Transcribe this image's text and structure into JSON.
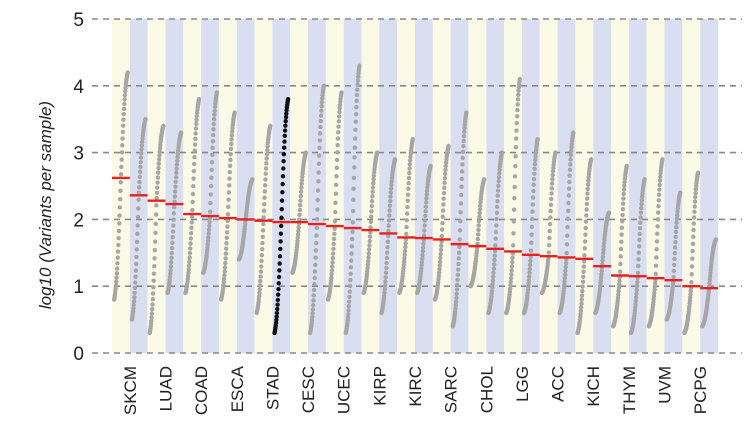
{
  "chart_data": {
    "type": "scatter",
    "xlabel": "",
    "ylabel": "log10 (Variants per sample)",
    "ylim": [
      0,
      5
    ],
    "yticks": [
      "0",
      "1",
      "2",
      "3",
      "4",
      "5"
    ],
    "grid": "horizontal dashed",
    "categories": [
      "SKCM",
      "LUAD",
      "COAD",
      "ESCA",
      "STAD",
      "CESC",
      "UCEC",
      "KIRP",
      "KIRC",
      "SARC",
      "CHOL",
      "LGG",
      "ACC",
      "KICH",
      "THYM",
      "UVM",
      "PCPG"
    ],
    "highlighted_category": "STAD",
    "colors": {
      "points": "#a6a6a6",
      "highlight_points": "#111111",
      "median_line": "#e8201e",
      "band_light": "#fbfae6",
      "band_dark": "#d9dff0",
      "grid": "#888888"
    },
    "series": [
      {
        "category": "SKCM",
        "median": 2.62,
        "min": 0.8,
        "max": 4.2
      },
      {
        "category": "SKCM",
        "median": 2.36,
        "min": 0.5,
        "max": 3.5
      },
      {
        "category": "LUAD",
        "median": 2.28,
        "min": 0.3,
        "max": 3.4
      },
      {
        "category": "LUAD",
        "median": 2.23,
        "min": 0.9,
        "max": 3.3
      },
      {
        "category": "COAD",
        "median": 2.08,
        "min": 0.9,
        "max": 3.8
      },
      {
        "category": "COAD",
        "median": 2.05,
        "min": 1.2,
        "max": 3.9
      },
      {
        "category": "ESCA",
        "median": 2.02,
        "min": 0.8,
        "max": 3.6
      },
      {
        "category": "ESCA",
        "median": 2.0,
        "min": 1.4,
        "max": 2.6
      },
      {
        "category": "STAD",
        "median": 1.98,
        "min": 0.6,
        "max": 3.4
      },
      {
        "category": "STAD",
        "median": 1.96,
        "min": 0.3,
        "max": 3.8
      },
      {
        "category": "CESC",
        "median": 1.96,
        "min": 1.2,
        "max": 3.0
      },
      {
        "category": "CESC",
        "median": 1.93,
        "min": 0.3,
        "max": 4.0
      },
      {
        "category": "UCEC",
        "median": 1.9,
        "min": 0.8,
        "max": 3.9
      },
      {
        "category": "UCEC",
        "median": 1.87,
        "min": 0.3,
        "max": 4.3
      },
      {
        "category": "KIRP",
        "median": 1.84,
        "min": 0.9,
        "max": 3.0
      },
      {
        "category": "KIRP",
        "median": 1.79,
        "min": 0.6,
        "max": 2.9
      },
      {
        "category": "KIRC",
        "median": 1.73,
        "min": 0.9,
        "max": 3.2
      },
      {
        "category": "KIRC",
        "median": 1.72,
        "min": 0.9,
        "max": 2.8
      },
      {
        "category": "SARC",
        "median": 1.7,
        "min": 0.8,
        "max": 3.1
      },
      {
        "category": "SARC",
        "median": 1.63,
        "min": 0.4,
        "max": 3.6
      },
      {
        "category": "CHOL",
        "median": 1.6,
        "min": 1.0,
        "max": 2.6
      },
      {
        "category": "CHOL",
        "median": 1.56,
        "min": 0.6,
        "max": 3.0
      },
      {
        "category": "LGG",
        "median": 1.52,
        "min": 0.6,
        "max": 4.1
      },
      {
        "category": "LGG",
        "median": 1.47,
        "min": 0.6,
        "max": 3.2
      },
      {
        "category": "ACC",
        "median": 1.45,
        "min": 0.9,
        "max": 3.0
      },
      {
        "category": "ACC",
        "median": 1.43,
        "min": 0.6,
        "max": 3.3
      },
      {
        "category": "KICH",
        "median": 1.41,
        "min": 0.3,
        "max": 2.9
      },
      {
        "category": "KICH",
        "median": 1.3,
        "min": 0.6,
        "max": 2.1
      },
      {
        "category": "THYM",
        "median": 1.16,
        "min": 0.4,
        "max": 2.8
      },
      {
        "category": "THYM",
        "median": 1.15,
        "min": 0.3,
        "max": 2.6
      },
      {
        "category": "UVM",
        "median": 1.12,
        "min": 0.4,
        "max": 2.9
      },
      {
        "category": "UVM",
        "median": 1.09,
        "min": 0.5,
        "max": 2.4
      },
      {
        "category": "PCPG",
        "median": 1.0,
        "min": 0.3,
        "max": 2.7
      },
      {
        "category": "PCPG",
        "median": 0.97,
        "min": 0.4,
        "max": 1.7
      }
    ]
  }
}
